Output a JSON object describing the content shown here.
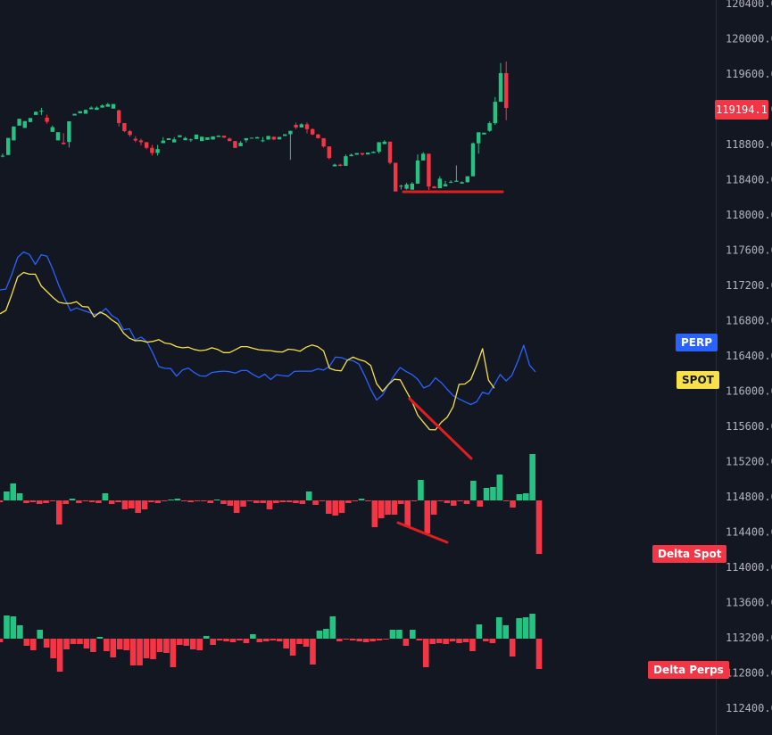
{
  "price_axis": {
    "ticks": [
      "120400.0",
      "120000.0",
      "119600.0",
      "119200.0",
      "118800.0",
      "118400.0",
      "118000.0",
      "117600.0",
      "117200.0",
      "116800.0",
      "116400.0",
      "116000.0",
      "115600.0",
      "115200.0",
      "114800.0",
      "114400.0",
      "114000.0",
      "113600.0",
      "113200.0",
      "112800.0",
      "112400.0"
    ],
    "current_price": "119194.1"
  },
  "labels": {
    "perp": "PERP",
    "spot": "SPOT",
    "delta_spot": "Delta Spot",
    "delta_perps": "Delta Perps"
  },
  "colors": {
    "background": "#131722",
    "up": "#26c281",
    "down": "#f23645",
    "perp_line": "#2962ff",
    "spot_line": "#f7e04a",
    "annotation": "#e01e1e",
    "axis_text": "#b2b5be",
    "grid": "#2a2e39"
  },
  "chart_data": [
    {
      "type": "candlestick",
      "title": "",
      "unit": "price",
      "ylim": [
        112250,
        120500
      ],
      "candles": [
        [
          118719,
          118745,
          118700,
          118719
        ],
        [
          118727,
          118927,
          118727,
          118927
        ],
        [
          118898,
          119061,
          118898,
          119061
        ],
        [
          119071,
          119151,
          119071,
          119151
        ],
        [
          119044,
          119124,
          119044,
          119124
        ],
        [
          119113,
          119160,
          119113,
          119160
        ],
        [
          119196,
          119237,
          119196,
          119233
        ],
        [
          119245,
          119280,
          119196,
          119245
        ],
        [
          119165,
          119200,
          119093,
          119116
        ],
        [
          118998,
          119073,
          118998,
          119053
        ],
        [
          118898,
          118994,
          118898,
          118994
        ],
        [
          118872,
          118983,
          118849,
          118855
        ],
        [
          118879,
          119122,
          118815,
          119122
        ],
        [
          119189,
          119209,
          119189,
          119209
        ],
        [
          119215,
          119240,
          119215,
          119240
        ],
        [
          119210,
          119260,
          119210,
          119255
        ],
        [
          119263,
          119297,
          119263,
          119282
        ],
        [
          119256,
          119297,
          119256,
          119282
        ],
        [
          119282,
          119319,
          119282,
          119307
        ],
        [
          119292,
          119337,
          119292,
          119322
        ],
        [
          119270,
          119324,
          119270,
          119324
        ],
        [
          119250,
          119260,
          119061,
          119101
        ],
        [
          119101,
          119101,
          118994,
          119007
        ],
        [
          119007,
          119020,
          118940,
          118962
        ],
        [
          118917,
          118947,
          118877,
          118897
        ],
        [
          118897,
          118918,
          118839,
          118877
        ],
        [
          118877,
          118877,
          118795,
          118811
        ],
        [
          118811,
          118846,
          118721,
          118751
        ],
        [
          118751,
          118846,
          118721,
          118796
        ],
        [
          118866,
          118936,
          118866,
          118895
        ],
        [
          118902,
          118923,
          118902,
          118923
        ],
        [
          118875,
          118935,
          118875,
          118910
        ],
        [
          118936,
          118958,
          118936,
          118958
        ],
        [
          118900,
          118940,
          118900,
          118926
        ],
        [
          118900,
          118920,
          118882,
          118910
        ],
        [
          118912,
          118966,
          118912,
          118966
        ],
        [
          118890,
          118946,
          118890,
          118940
        ],
        [
          118904,
          118934,
          118904,
          118934
        ],
        [
          118908,
          118945,
          118908,
          118945
        ],
        [
          118938,
          118958,
          118938,
          118953
        ],
        [
          118953,
          118953,
          118928,
          118930
        ],
        [
          118920,
          118930,
          118889,
          118890
        ],
        [
          118890,
          118890,
          118810,
          118810
        ],
        [
          118830,
          118890,
          118830,
          118870
        ],
        [
          118899,
          118924,
          118874,
          118924
        ],
        [
          118924,
          118929,
          118922,
          118929
        ],
        [
          118920,
          118940,
          118920,
          118936
        ],
        [
          118898,
          118938,
          118878,
          118898
        ],
        [
          118908,
          118950,
          118908,
          118950
        ],
        [
          118940,
          118945,
          118900,
          118910
        ],
        [
          118910,
          118940,
          118910,
          118938
        ],
        [
          118950,
          118970,
          118950,
          118970
        ],
        [
          118970,
          119010,
          118670,
          119010
        ],
        [
          119080,
          119106,
          119030,
          119050
        ],
        [
          119050,
          119100,
          119050,
          119086
        ],
        [
          119086,
          119110,
          118980,
          119030
        ],
        [
          119030,
          119040,
          118960,
          118967
        ],
        [
          118967,
          118974,
          118920,
          118924
        ],
        [
          118924,
          118924,
          118813,
          118827
        ],
        [
          118827,
          118827,
          118676,
          118692
        ],
        [
          118594,
          118625,
          118594,
          118614
        ],
        [
          118614,
          118625,
          118595,
          118600
        ],
        [
          118600,
          118733,
          118600,
          118713
        ],
        [
          118713,
          118744,
          118713,
          118730
        ],
        [
          118730,
          118750,
          118730,
          118750
        ],
        [
          118750,
          118750,
          118720,
          118733
        ],
        [
          118733,
          118755,
          118733,
          118755
        ],
        [
          118750,
          118770,
          118750,
          118765
        ],
        [
          118765,
          118877,
          118745,
          118877
        ],
        [
          118855,
          118900,
          118855,
          118883
        ],
        [
          118883,
          118883,
          118618,
          118636
        ],
        [
          118636,
          118636,
          118300,
          118300
        ],
        [
          118360,
          118380,
          118322,
          118367
        ],
        [
          118332,
          118402,
          118321,
          118382
        ],
        [
          118321,
          118409,
          118321,
          118392
        ],
        [
          118392,
          118734,
          118392,
          118663
        ],
        [
          118663,
          118761,
          118663,
          118742
        ],
        [
          118742,
          118742,
          118318,
          118358
        ],
        [
          118358,
          118364,
          118338,
          118338
        ],
        [
          118338,
          118478,
          118338,
          118450
        ],
        [
          118360,
          118425,
          118360,
          118385
        ],
        [
          118403,
          118432,
          118398,
          118413
        ],
        [
          118413,
          118605,
          118413,
          118426
        ],
        [
          118393,
          118419,
          118393,
          118409
        ],
        [
          118409,
          118478,
          118402,
          118478
        ],
        [
          118478,
          118875,
          118478,
          118864
        ],
        [
          118864,
          118993,
          118742,
          118993
        ],
        [
          118968,
          118988,
          118968,
          118988
        ],
        [
          119010,
          119120,
          119000,
          119100
        ],
        [
          119100,
          119405,
          119080,
          119350
        ],
        [
          119350,
          119804,
          119350,
          119686
        ],
        [
          119686,
          119821,
          119135,
          119278
        ]
      ]
    },
    {
      "type": "line",
      "title": "",
      "ylim": [
        0,
        100
      ],
      "series": [
        {
          "name": "PERP",
          "values": [
            61.9,
            62.2,
            67.4,
            73.5,
            75.4,
            74.5,
            71.0,
            74.4,
            73.9,
            69.1,
            63.5,
            58.8,
            54.5,
            55.5,
            54.7,
            54.0,
            53.2,
            53.5,
            55.3,
            52.8,
            51.5,
            47.7,
            48.1,
            44.1,
            45.1,
            43.4,
            39.3,
            34.6,
            34.0,
            33.9,
            31.2,
            33.4,
            34.1,
            32.5,
            31.3,
            31.2,
            32.5,
            32.8,
            33.0,
            32.8,
            32.3,
            33.2,
            33.2,
            31.8,
            30.7,
            31.9,
            30.0,
            31.7,
            31.4,
            31.2,
            32.9,
            33.0,
            33.0,
            33.0,
            33.8,
            33.4,
            34.7,
            38.0,
            37.8,
            37.0,
            36.7,
            35.5,
            31.3,
            26.5,
            22.7,
            24.5,
            28.2,
            31.5,
            34.3,
            32.9,
            31.8,
            30.1,
            27.0,
            27.9,
            30.6,
            28.9,
            26.5,
            24.3,
            23.1,
            22.1,
            21.1,
            22.1,
            25.5,
            24.8,
            28.1,
            31.8,
            29.5,
            31.5,
            36.5,
            42.2,
            35.1,
            32.7
          ]
        },
        {
          "name": "SPOT",
          "values": [
            53.4,
            54.6,
            60.3,
            66.5,
            68.1,
            67.5,
            67.5,
            63.3,
            61.3,
            59.2,
            57.5,
            57.1,
            57.1,
            57.7,
            56.0,
            55.8,
            52.3,
            54.0,
            53.0,
            51.2,
            49.8,
            46.5,
            44.7,
            43.8,
            43.9,
            43.3,
            43.6,
            44.2,
            43.0,
            42.7,
            41.7,
            41.3,
            41.5,
            40.7,
            40.3,
            40.5,
            41.3,
            40.7,
            39.6,
            39.6,
            40.6,
            41.7,
            41.7,
            41.1,
            40.6,
            40.4,
            40.3,
            39.9,
            39.8,
            40.8,
            40.6,
            40.1,
            41.5,
            42.3,
            41.7,
            40.2,
            34.0,
            33.3,
            33.1,
            36.8,
            38.0,
            37.1,
            36.5,
            35.0,
            28.5,
            25.8,
            28.2,
            30.1,
            29.9,
            26.1,
            22.3,
            17.3,
            14.7,
            12.2,
            12.1,
            14.8,
            16.6,
            20.3,
            28.3,
            28.4,
            30.0,
            35.1,
            41.0,
            29.8,
            26.9
          ]
        }
      ]
    },
    {
      "type": "bar",
      "title": "Delta Spot",
      "ylim": [
        -62,
        54
      ],
      "values": [
        -2,
        10,
        19,
        8,
        -3,
        -2,
        -4,
        -3,
        -1,
        -27,
        -4,
        2,
        -3,
        -1,
        -2,
        -3,
        8,
        -4,
        -2,
        -10,
        -9,
        -14,
        -10,
        -2,
        -3,
        -1,
        1,
        2,
        -1,
        -2,
        -1,
        -1,
        -3,
        1,
        -4,
        -6,
        -14,
        -7,
        -1,
        -3,
        -3,
        -10,
        -3,
        -2,
        -2,
        -3,
        -4,
        10,
        -5,
        -1,
        -15,
        -17,
        -14,
        -3,
        -1,
        2,
        -1,
        -30,
        -20,
        -16,
        -16,
        -4,
        -30,
        -1,
        23,
        -37,
        -16,
        -1,
        -3,
        -6,
        -1,
        -4,
        22,
        -7,
        14,
        15,
        29,
        -1,
        -8,
        7,
        8,
        52,
        -60
      ]
    },
    {
      "type": "bar",
      "title": "Delta Perps",
      "ylim": [
        -42,
        33
      ],
      "values": [
        -4,
        26,
        25,
        15,
        -8,
        -13,
        10,
        -10,
        -22,
        -37,
        -12,
        -6,
        -6,
        -11,
        -15,
        2,
        -14,
        -21,
        -12,
        -13,
        -30,
        -30,
        -22,
        -23,
        -15,
        -16,
        -32,
        -7,
        -8,
        -12,
        -13,
        3,
        -7,
        -2,
        -3,
        -4,
        -2,
        -5,
        5,
        -4,
        -3,
        -2,
        -3,
        -11,
        -19,
        -6,
        -9,
        -29,
        9,
        11,
        25,
        -3,
        -1,
        -2,
        -3,
        -4,
        -3,
        -2,
        -1,
        10,
        10,
        -8,
        10,
        -2,
        -32,
        -6,
        -5,
        -6,
        -3,
        -5,
        -4,
        -14,
        16,
        -3,
        -5,
        24,
        15,
        -20,
        23,
        24,
        28,
        -34
      ]
    }
  ]
}
